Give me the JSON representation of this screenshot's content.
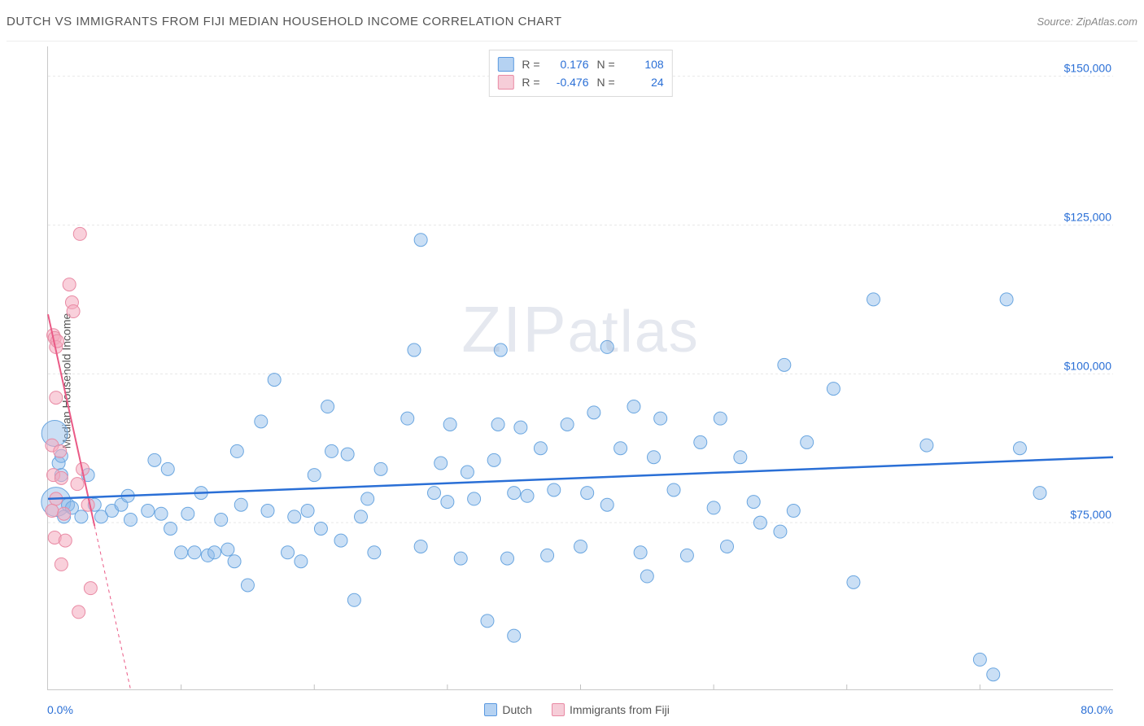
{
  "title": "DUTCH VS IMMIGRANTS FROM FIJI MEDIAN HOUSEHOLD INCOME CORRELATION CHART",
  "source_label": "Source: ",
  "source_name": "ZipAtlas.com",
  "watermark": "ZIPatlas",
  "chart": {
    "type": "scatter",
    "background_color": "#ffffff",
    "grid_color": "#e8e8e8",
    "axis_color": "#c8c8c8",
    "x": {
      "min": 0,
      "max": 80,
      "min_label": "0.0%",
      "max_label": "80.0%",
      "ticks": [
        10,
        20,
        30,
        40,
        50,
        60,
        70
      ]
    },
    "y": {
      "min": 47000,
      "max": 155000,
      "label": "Median Household Income",
      "ticks": [
        75000,
        100000,
        125000,
        150000
      ],
      "tick_labels": [
        "$75,000",
        "$100,000",
        "$125,000",
        "$150,000"
      ],
      "tick_color": "#2a6fd6"
    },
    "legend_top": [
      {
        "swatch_fill": "#b5d2f2",
        "swatch_border": "#5a99e0",
        "r_label": "R =",
        "r_val": "0.176",
        "n_label": "N =",
        "n_val": "108"
      },
      {
        "swatch_fill": "#f6cdd8",
        "swatch_border": "#e98aa4",
        "r_label": "R =",
        "r_val": "-0.476",
        "n_label": "N =",
        "n_val": "24"
      }
    ],
    "legend_bottom": [
      {
        "swatch_fill": "#b5d2f2",
        "swatch_border": "#5a99e0",
        "label": "Dutch"
      },
      {
        "swatch_fill": "#f6cdd8",
        "swatch_border": "#e98aa4",
        "label": "Immigrants from Fiji"
      }
    ],
    "series": {
      "dutch": {
        "fill": "rgba(137,183,233,0.45)",
        "stroke": "#6aa6e0",
        "marker_radius_default": 8,
        "trend": {
          "x1": 0,
          "y1": 79000,
          "x2": 80,
          "y2": 86000,
          "stroke": "#2a6fd6",
          "width": 2.5
        },
        "points": [
          {
            "x": 0.5,
            "y": 90000,
            "r": 16
          },
          {
            "x": 0.6,
            "y": 78500,
            "r": 18
          },
          {
            "x": 0.8,
            "y": 85000
          },
          {
            "x": 1.0,
            "y": 83000
          },
          {
            "x": 1.2,
            "y": 76000
          },
          {
            "x": 1.0,
            "y": 86200
          },
          {
            "x": 1.5,
            "y": 78000
          },
          {
            "x": 1.8,
            "y": 77500
          },
          {
            "x": 2.5,
            "y": 76000
          },
          {
            "x": 3.0,
            "y": 83000
          },
          {
            "x": 3.5,
            "y": 78000
          },
          {
            "x": 4.0,
            "y": 76000
          },
          {
            "x": 4.8,
            "y": 77000
          },
          {
            "x": 5.5,
            "y": 78000
          },
          {
            "x": 6.0,
            "y": 79500
          },
          {
            "x": 6.2,
            "y": 75500
          },
          {
            "x": 7.5,
            "y": 77000
          },
          {
            "x": 8.0,
            "y": 85500
          },
          {
            "x": 8.5,
            "y": 76500
          },
          {
            "x": 9.0,
            "y": 84000
          },
          {
            "x": 9.2,
            "y": 74000
          },
          {
            "x": 10.0,
            "y": 70000
          },
          {
            "x": 10.5,
            "y": 76500
          },
          {
            "x": 11.0,
            "y": 70000
          },
          {
            "x": 11.5,
            "y": 80000
          },
          {
            "x": 12.0,
            "y": 69500
          },
          {
            "x": 12.5,
            "y": 70000
          },
          {
            "x": 13.0,
            "y": 75500
          },
          {
            "x": 13.5,
            "y": 70500
          },
          {
            "x": 14.0,
            "y": 68500
          },
          {
            "x": 14.5,
            "y": 78000
          },
          {
            "x": 14.2,
            "y": 87000
          },
          {
            "x": 15.0,
            "y": 64500
          },
          {
            "x": 16.0,
            "y": 92000
          },
          {
            "x": 16.5,
            "y": 77000
          },
          {
            "x": 17.0,
            "y": 99000
          },
          {
            "x": 18.0,
            "y": 70000
          },
          {
            "x": 18.5,
            "y": 76000
          },
          {
            "x": 19.0,
            "y": 68500
          },
          {
            "x": 19.5,
            "y": 77000
          },
          {
            "x": 20.0,
            "y": 83000
          },
          {
            "x": 20.5,
            "y": 74000
          },
          {
            "x": 21.0,
            "y": 94500
          },
          {
            "x": 21.3,
            "y": 87000
          },
          {
            "x": 22.0,
            "y": 72000
          },
          {
            "x": 22.5,
            "y": 86500
          },
          {
            "x": 23.0,
            "y": 62000
          },
          {
            "x": 23.5,
            "y": 76000
          },
          {
            "x": 24.0,
            "y": 79000
          },
          {
            "x": 24.5,
            "y": 70000
          },
          {
            "x": 25.0,
            "y": 84000
          },
          {
            "x": 27.0,
            "y": 92500
          },
          {
            "x": 27.5,
            "y": 104000
          },
          {
            "x": 28.0,
            "y": 71000
          },
          {
            "x": 28.0,
            "y": 122500
          },
          {
            "x": 29.0,
            "y": 80000
          },
          {
            "x": 29.5,
            "y": 85000
          },
          {
            "x": 30.0,
            "y": 78500
          },
          {
            "x": 30.2,
            "y": 91500
          },
          {
            "x": 31.0,
            "y": 69000
          },
          {
            "x": 31.5,
            "y": 83500
          },
          {
            "x": 32.0,
            "y": 79000
          },
          {
            "x": 33.0,
            "y": 58500
          },
          {
            "x": 33.5,
            "y": 85500
          },
          {
            "x": 33.8,
            "y": 91500
          },
          {
            "x": 34.0,
            "y": 104000
          },
          {
            "x": 34.5,
            "y": 69000
          },
          {
            "x": 35.0,
            "y": 80000
          },
          {
            "x": 35.0,
            "y": 56000
          },
          {
            "x": 35.5,
            "y": 91000
          },
          {
            "x": 36.0,
            "y": 79500
          },
          {
            "x": 37.0,
            "y": 87500
          },
          {
            "x": 37.5,
            "y": 69500
          },
          {
            "x": 38.0,
            "y": 80500
          },
          {
            "x": 39.0,
            "y": 91500
          },
          {
            "x": 40.0,
            "y": 71000
          },
          {
            "x": 40.5,
            "y": 80000
          },
          {
            "x": 41.0,
            "y": 93500
          },
          {
            "x": 42.0,
            "y": 78000
          },
          {
            "x": 42.0,
            "y": 104500
          },
          {
            "x": 43.0,
            "y": 87500
          },
          {
            "x": 44.0,
            "y": 94500
          },
          {
            "x": 44.5,
            "y": 70000
          },
          {
            "x": 45.0,
            "y": 66000
          },
          {
            "x": 45.5,
            "y": 86000
          },
          {
            "x": 46.0,
            "y": 92500
          },
          {
            "x": 47.0,
            "y": 80500
          },
          {
            "x": 48.0,
            "y": 69500
          },
          {
            "x": 49.0,
            "y": 88500
          },
          {
            "x": 50.0,
            "y": 77500
          },
          {
            "x": 50.5,
            "y": 92500
          },
          {
            "x": 51.0,
            "y": 71000
          },
          {
            "x": 52.0,
            "y": 86000
          },
          {
            "x": 53.0,
            "y": 78500
          },
          {
            "x": 53.5,
            "y": 75000
          },
          {
            "x": 55.0,
            "y": 73500
          },
          {
            "x": 56.0,
            "y": 77000
          },
          {
            "x": 55.3,
            "y": 101500
          },
          {
            "x": 57.0,
            "y": 88500
          },
          {
            "x": 59.0,
            "y": 97500
          },
          {
            "x": 60.5,
            "y": 65000
          },
          {
            "x": 62.0,
            "y": 112500
          },
          {
            "x": 66.0,
            "y": 88000
          },
          {
            "x": 70.0,
            "y": 52000
          },
          {
            "x": 71.0,
            "y": 49500
          },
          {
            "x": 72.0,
            "y": 112500
          },
          {
            "x": 73.0,
            "y": 87500
          },
          {
            "x": 74.5,
            "y": 80000
          }
        ]
      },
      "fiji": {
        "fill": "rgba(244,170,190,0.55)",
        "stroke": "#e98aa4",
        "marker_radius_default": 8,
        "trend": {
          "x1": 0,
          "y1": 110000,
          "x2": 6.2,
          "y2": 47000,
          "stroke": "#ea5a86",
          "width": 2,
          "dash_after_x": 3.5
        },
        "points": [
          {
            "x": 0.4,
            "y": 106500
          },
          {
            "x": 0.5,
            "y": 106000
          },
          {
            "x": 0.6,
            "y": 104500
          },
          {
            "x": 0.7,
            "y": 105500
          },
          {
            "x": 0.6,
            "y": 96000
          },
          {
            "x": 0.3,
            "y": 88000
          },
          {
            "x": 0.9,
            "y": 87000
          },
          {
            "x": 0.4,
            "y": 83000
          },
          {
            "x": 1.0,
            "y": 82500
          },
          {
            "x": 0.6,
            "y": 79000
          },
          {
            "x": 0.3,
            "y": 77000
          },
          {
            "x": 1.2,
            "y": 76500
          },
          {
            "x": 0.5,
            "y": 72500
          },
          {
            "x": 1.3,
            "y": 72000
          },
          {
            "x": 1.0,
            "y": 68000
          },
          {
            "x": 1.6,
            "y": 115000
          },
          {
            "x": 1.8,
            "y": 112000
          },
          {
            "x": 1.9,
            "y": 110500
          },
          {
            "x": 2.4,
            "y": 123500
          },
          {
            "x": 2.2,
            "y": 81500
          },
          {
            "x": 2.3,
            "y": 60000
          },
          {
            "x": 3.2,
            "y": 64000
          },
          {
            "x": 2.6,
            "y": 84000
          },
          {
            "x": 3.0,
            "y": 78000
          }
        ]
      }
    }
  }
}
